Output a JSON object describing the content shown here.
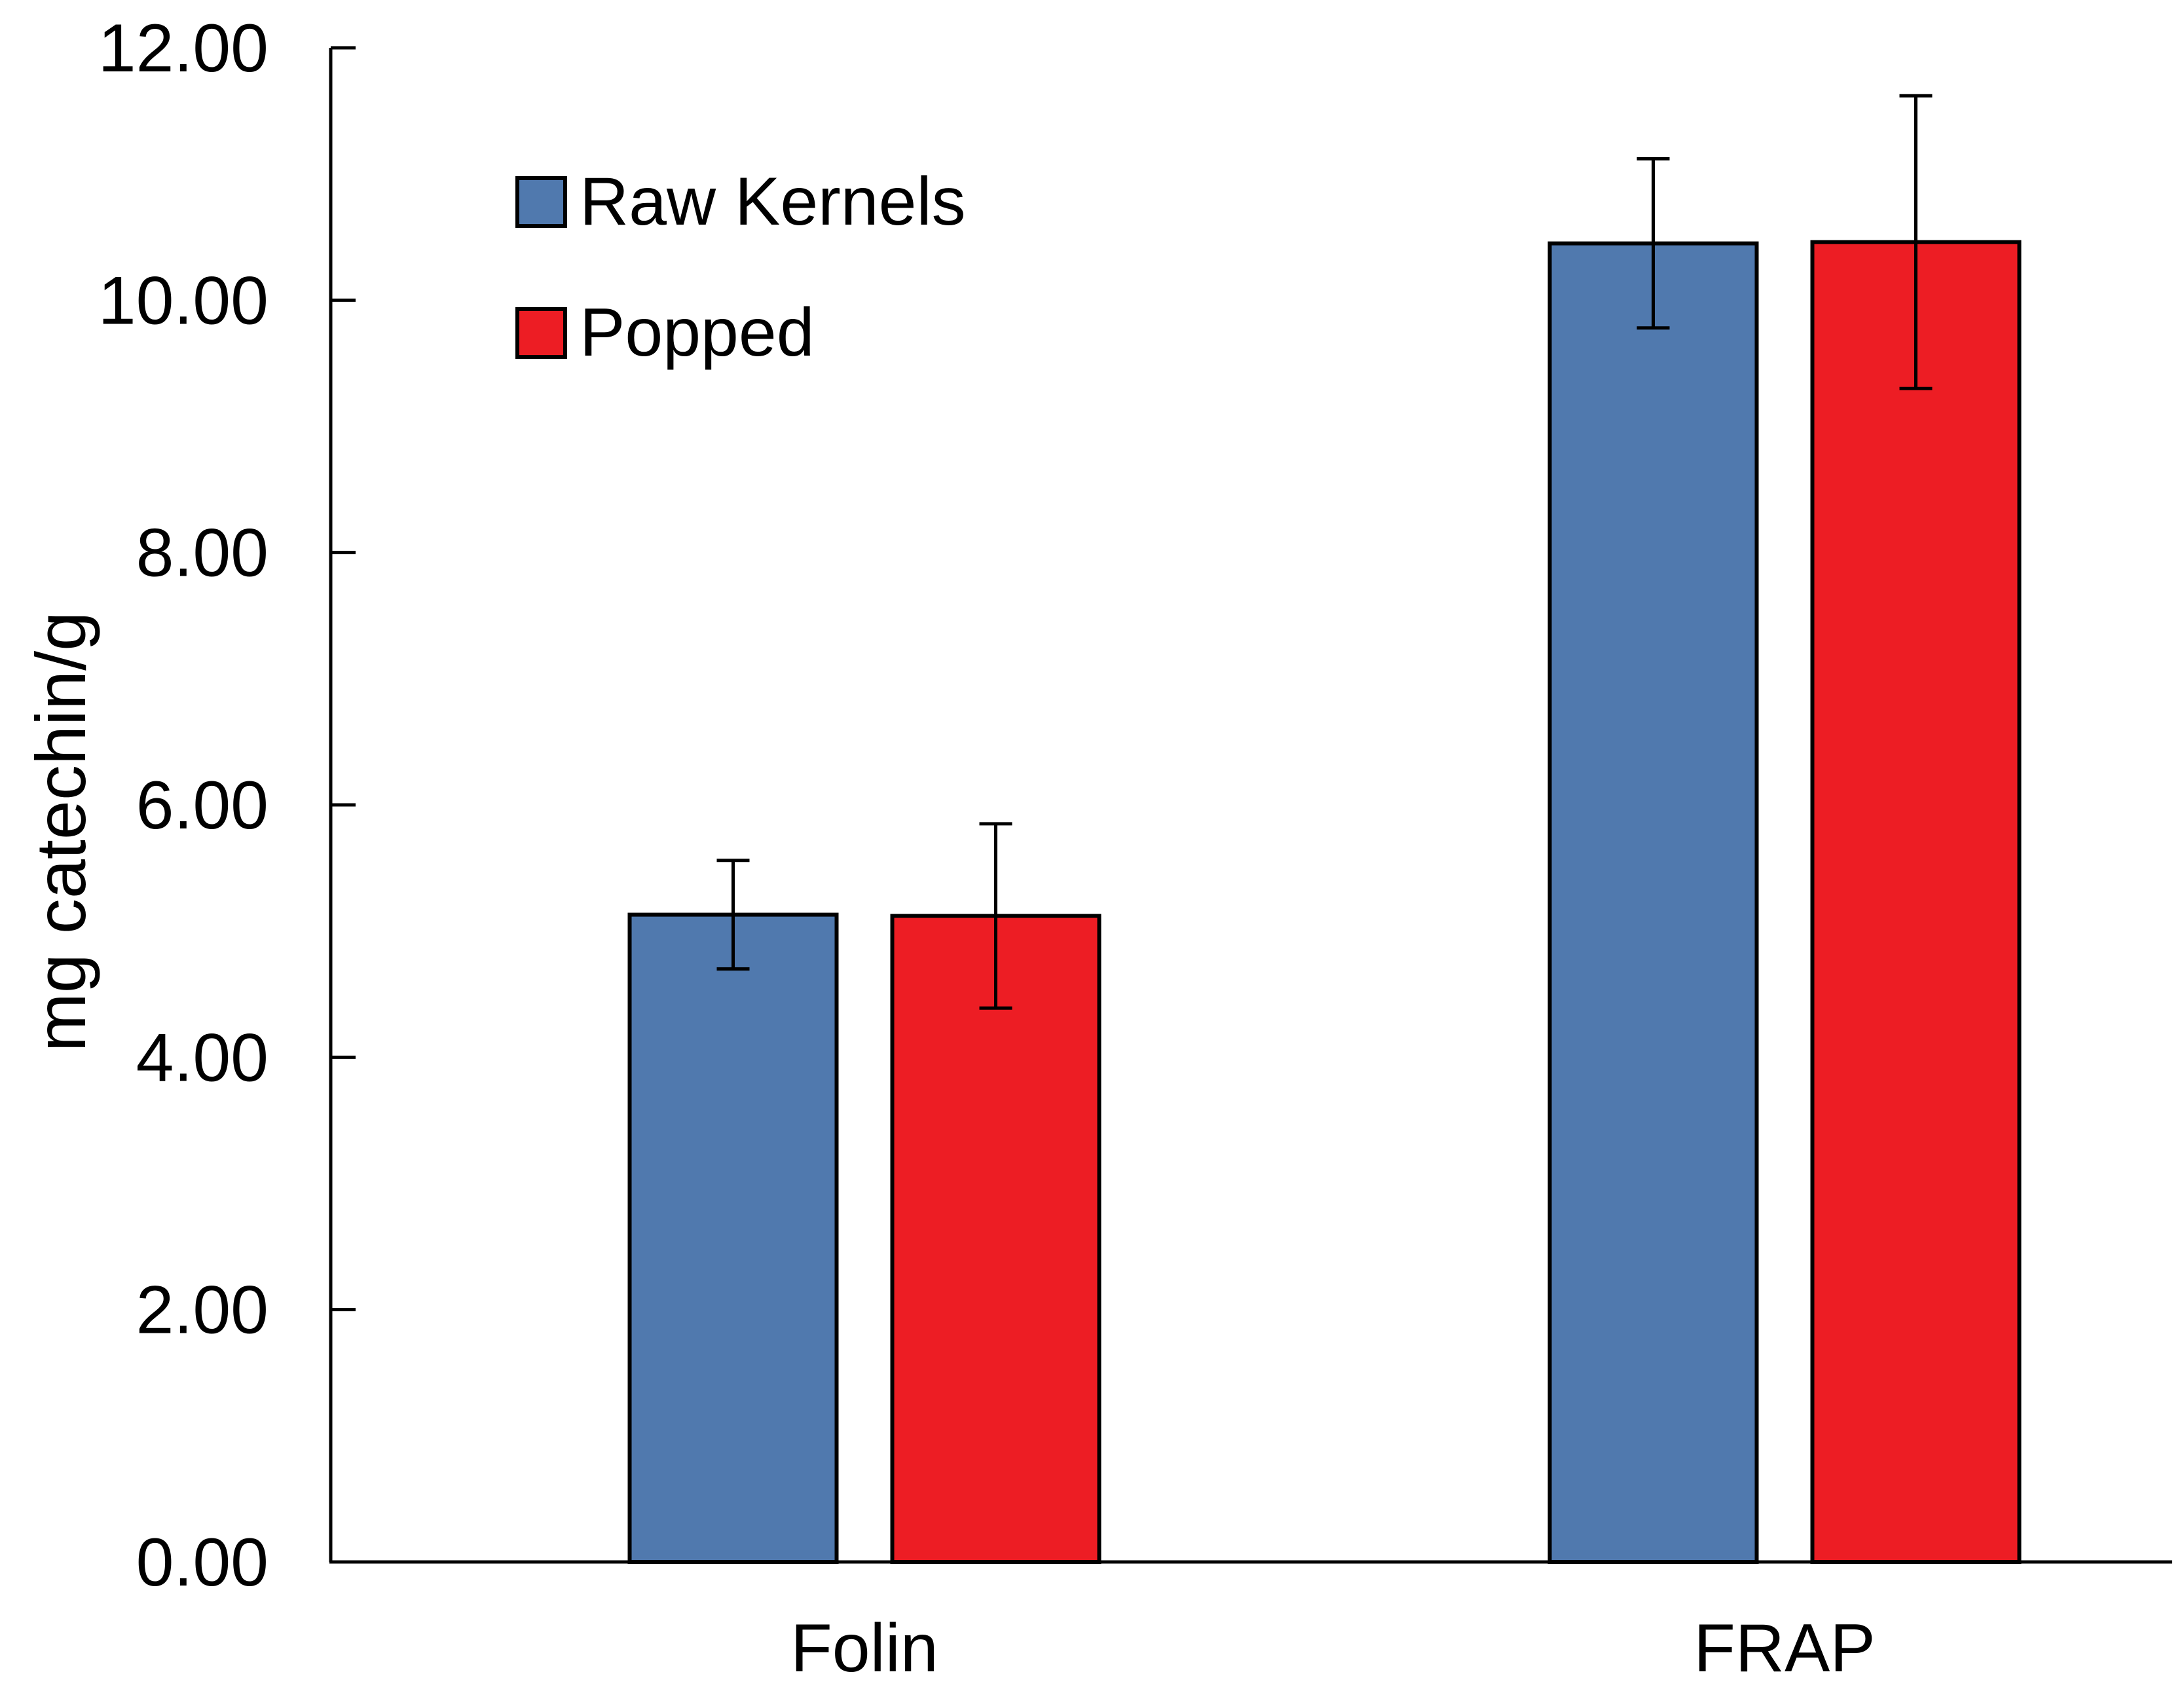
{
  "chart_data": {
    "type": "bar",
    "title": "",
    "xlabel": "",
    "ylabel": "mg catechin/g",
    "ylim": [
      0,
      12
    ],
    "y_ticks": [
      "0.00",
      "2.00",
      "4.00",
      "6.00",
      "8.00",
      "10.00",
      "12.00"
    ],
    "categories": [
      "Folin",
      "FRAP"
    ],
    "series": [
      {
        "name": "Raw Kernels",
        "color": "#5079ae",
        "values": [
          5.13,
          10.45
        ],
        "errors": [
          0.43,
          0.67
        ]
      },
      {
        "name": "Popped",
        "color": "#ed1d24",
        "values": [
          5.12,
          10.46
        ],
        "errors": [
          0.73,
          1.16
        ]
      }
    ],
    "legend_position": "top-left",
    "grid": false
  }
}
